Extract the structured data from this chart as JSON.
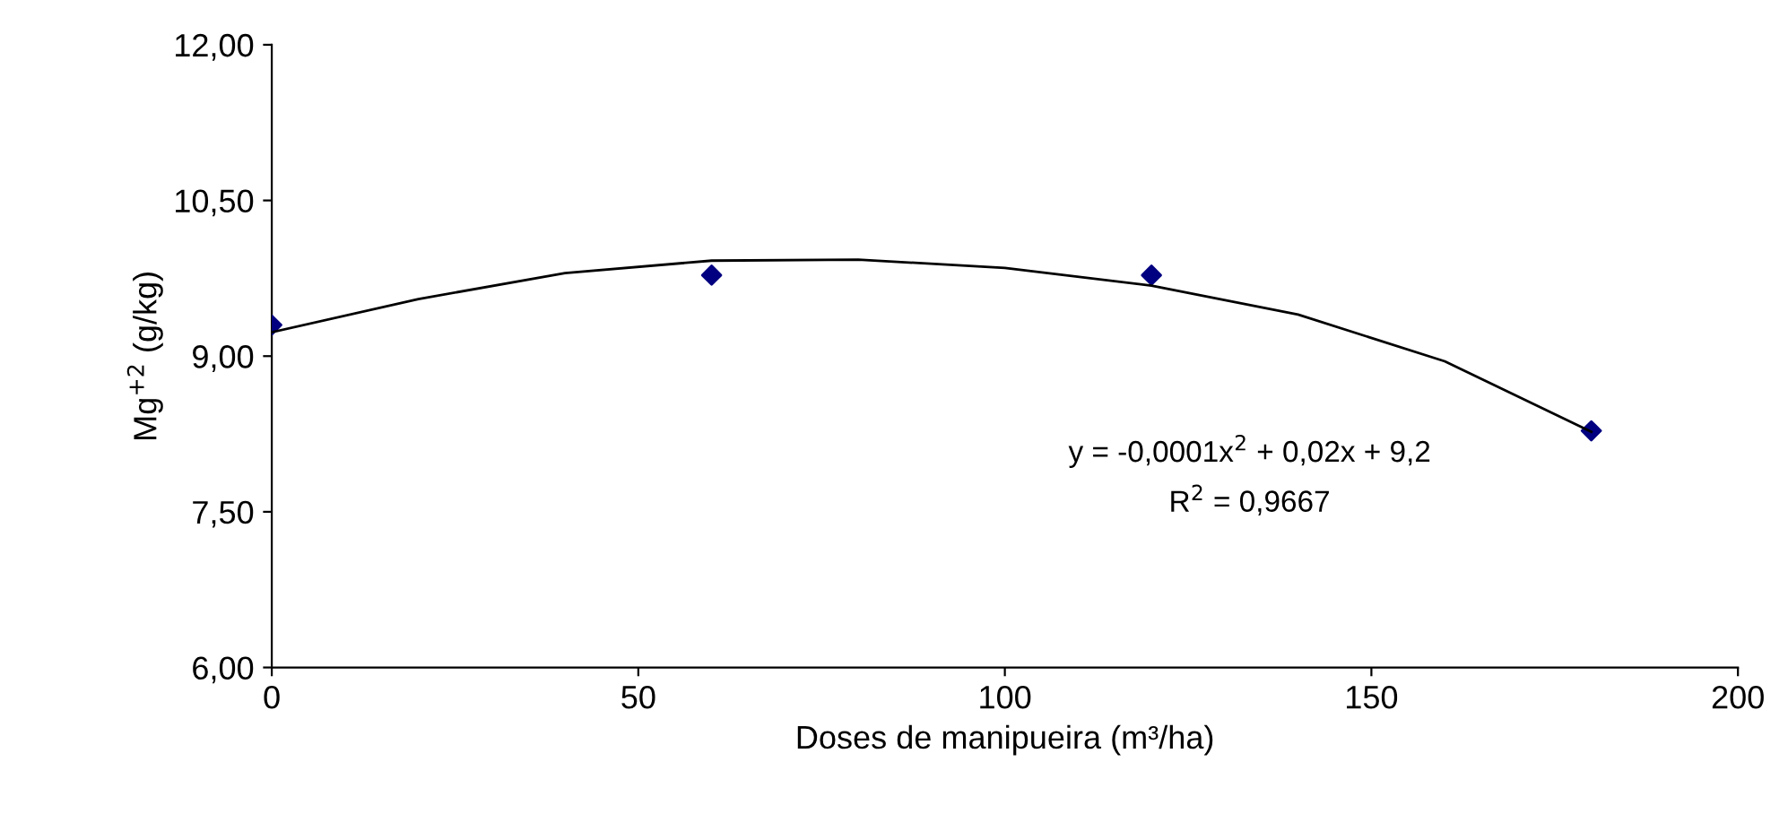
{
  "chart_data": {
    "type": "scatter",
    "xlabel": "Doses de manipueira (m³/ha)",
    "ylabel": "Mg$^{+2}$ (g/kg)",
    "x": [
      0,
      60,
      120,
      180
    ],
    "series": [
      {
        "color": "#000080",
        "marker": "diamond",
        "values": [
          9.3,
          9.78,
          9.78,
          8.28
        ]
      },
      {
        "type": "line",
        "color": "#000000",
        "marker": "none",
        "x": [
          0,
          20,
          40,
          60,
          80,
          100,
          120,
          140,
          160,
          180
        ],
        "values": [
          9.23,
          9.55,
          9.8,
          9.92,
          9.93,
          9.85,
          9.68,
          9.4,
          8.95,
          8.27
        ]
      }
    ],
    "xlim": [
      0,
      200
    ],
    "xticks": [
      0,
      50,
      100,
      150,
      200
    ],
    "ylim": [
      6,
      12
    ],
    "yticks": [
      {
        "value": 6,
        "label": "6,00"
      },
      {
        "value": 7.5,
        "label": "7,50"
      },
      {
        "value": 9,
        "label": "9,00"
      },
      {
        "value": 10.5,
        "label": "10,50"
      },
      {
        "value": 12,
        "label": "12,00"
      }
    ],
    "annotations": [
      "y = -0,0001x$^{2}$ + 0,02x + 9,2",
      "R$^{2}$ = 0,9667"
    ],
    "grid": false,
    "legend": false
  }
}
